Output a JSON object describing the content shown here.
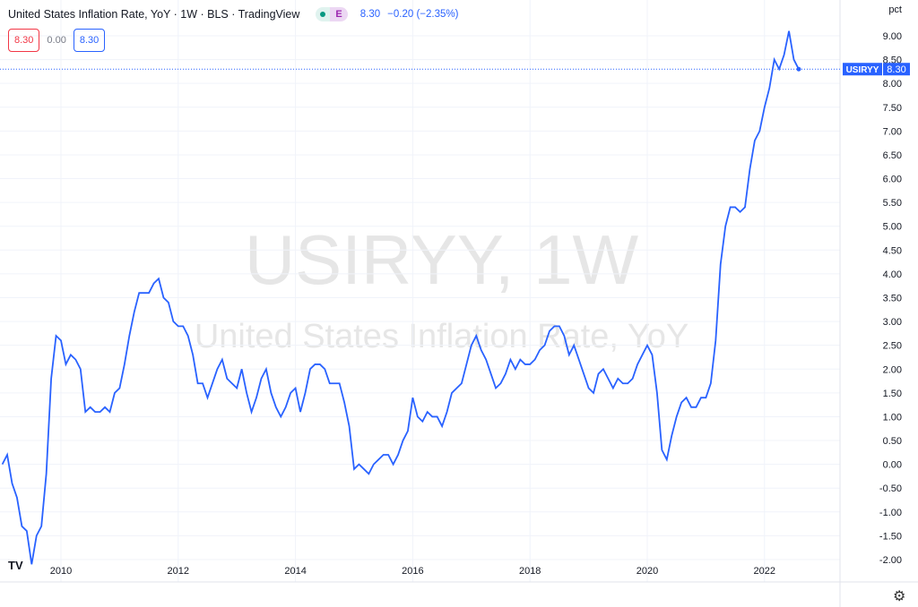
{
  "header": {
    "title": "United States Inflation Rate, YoY · 1W · BLS · TradingView",
    "badge": "E",
    "last": "8.30",
    "change": "−0.20 (−2.35%)",
    "box_left": "8.30",
    "mid": "0.00",
    "box_right": "8.30"
  },
  "watermark": {
    "symbol": "USIRYY, 1W",
    "name": "United States Inflation Rate, YoY"
  },
  "colors": {
    "line": "#2962ff",
    "grid": "#f0f3fa",
    "axis_text": "#131722"
  },
  "icons": {
    "logo": "tradingview-logo",
    "settings": "gear-icon"
  },
  "chart_data": {
    "type": "line",
    "ylabel": "pct",
    "ylim": [
      -2.2,
      9.6
    ],
    "xlim": [
      "2009-01",
      "2023-04"
    ],
    "yticks": [
      "9.00",
      "8.50",
      "8.00",
      "7.50",
      "7.00",
      "6.50",
      "6.00",
      "5.50",
      "5.00",
      "4.50",
      "4.00",
      "3.50",
      "3.00",
      "2.50",
      "2.00",
      "1.50",
      "1.00",
      "0.50",
      "0.00",
      "-0.50",
      "-1.00",
      "-1.50",
      "-2.00"
    ],
    "xticks": [
      "2010",
      "2012",
      "2014",
      "2016",
      "2018",
      "2020",
      "2022"
    ],
    "grid": true,
    "last_label": {
      "symbol": "USIRYY",
      "value": "8.30"
    },
    "series": [
      {
        "start": "2009-01",
        "frequency": "monthly",
        "values": [
          0.0,
          0.2,
          -0.4,
          -0.7,
          -1.3,
          -1.4,
          -2.1,
          -1.5,
          -1.3,
          -0.2,
          1.8,
          2.7,
          2.6,
          2.1,
          2.3,
          2.2,
          2.0,
          1.1,
          1.2,
          1.1,
          1.1,
          1.2,
          1.1,
          1.5,
          1.6,
          2.1,
          2.7,
          3.2,
          3.6,
          3.6,
          3.6,
          3.8,
          3.9,
          3.5,
          3.4,
          3.0,
          2.9,
          2.9,
          2.7,
          2.3,
          1.7,
          1.7,
          1.4,
          1.7,
          2.0,
          2.2,
          1.8,
          1.7,
          1.6,
          2.0,
          1.5,
          1.1,
          1.4,
          1.8,
          2.0,
          1.5,
          1.2,
          1.0,
          1.2,
          1.5,
          1.6,
          1.1,
          1.5,
          2.0,
          2.1,
          2.1,
          2.0,
          1.7,
          1.7,
          1.7,
          1.3,
          0.8,
          -0.1,
          0.0,
          -0.1,
          -0.2,
          0.0,
          0.1,
          0.2,
          0.2,
          0.0,
          0.2,
          0.5,
          0.7,
          1.4,
          1.0,
          0.9,
          1.1,
          1.0,
          1.0,
          0.8,
          1.1,
          1.5,
          1.6,
          1.7,
          2.1,
          2.5,
          2.7,
          2.4,
          2.2,
          1.9,
          1.6,
          1.7,
          1.9,
          2.2,
          2.0,
          2.2,
          2.1,
          2.1,
          2.2,
          2.4,
          2.5,
          2.8,
          2.9,
          2.9,
          2.7,
          2.3,
          2.5,
          2.2,
          1.9,
          1.6,
          1.5,
          1.9,
          2.0,
          1.8,
          1.6,
          1.8,
          1.7,
          1.7,
          1.8,
          2.1,
          2.3,
          2.5,
          2.3,
          1.5,
          0.3,
          0.1,
          0.6,
          1.0,
          1.3,
          1.4,
          1.2,
          1.2,
          1.4,
          1.4,
          1.7,
          2.6,
          4.2,
          5.0,
          5.4,
          5.4,
          5.3,
          5.4,
          6.2,
          6.8,
          7.0,
          7.5,
          7.9,
          8.5,
          8.3,
          8.6,
          9.1,
          8.5,
          8.3
        ]
      }
    ]
  }
}
